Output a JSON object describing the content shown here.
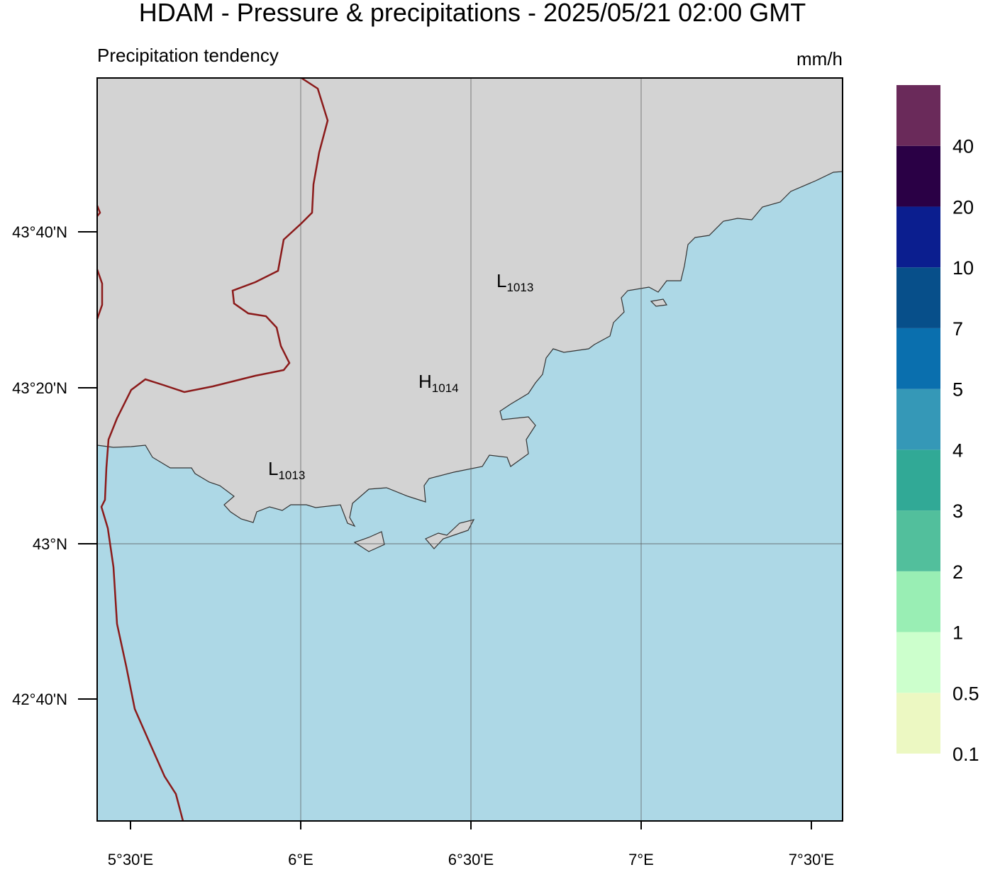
{
  "header": {
    "title": "HDAM - Pressure & precipitations  -  2025/05/21  02:00 GMT",
    "subtitle": "Precipitation tendency",
    "unit": "mm/h"
  },
  "map": {
    "lon_ticks": [
      "5°30'E",
      "6°E",
      "6°30'E",
      "7°E",
      "7°30'E"
    ],
    "lat_ticks": [
      "43°40'N",
      "43°20'N",
      "43°N",
      "42°40'N"
    ],
    "pressure_centers": [
      {
        "letter": "L",
        "value": 1013
      },
      {
        "letter": "H",
        "value": 1014
      },
      {
        "letter": "L",
        "value": 1013
      }
    ]
  },
  "legend": {
    "labels": [
      "0.1",
      "0.5",
      "1",
      "2",
      "3",
      "4",
      "5",
      "7",
      "10",
      "20",
      "40"
    ],
    "colors": [
      "#ecf8c2",
      "#ccffcc",
      "#99eeb4",
      "#52bf9c",
      "#31a996",
      "#3598b7",
      "#0a6fae",
      "#074f8a",
      "#0b1e8f",
      "#2a0045",
      "#6a2a5a"
    ]
  }
}
